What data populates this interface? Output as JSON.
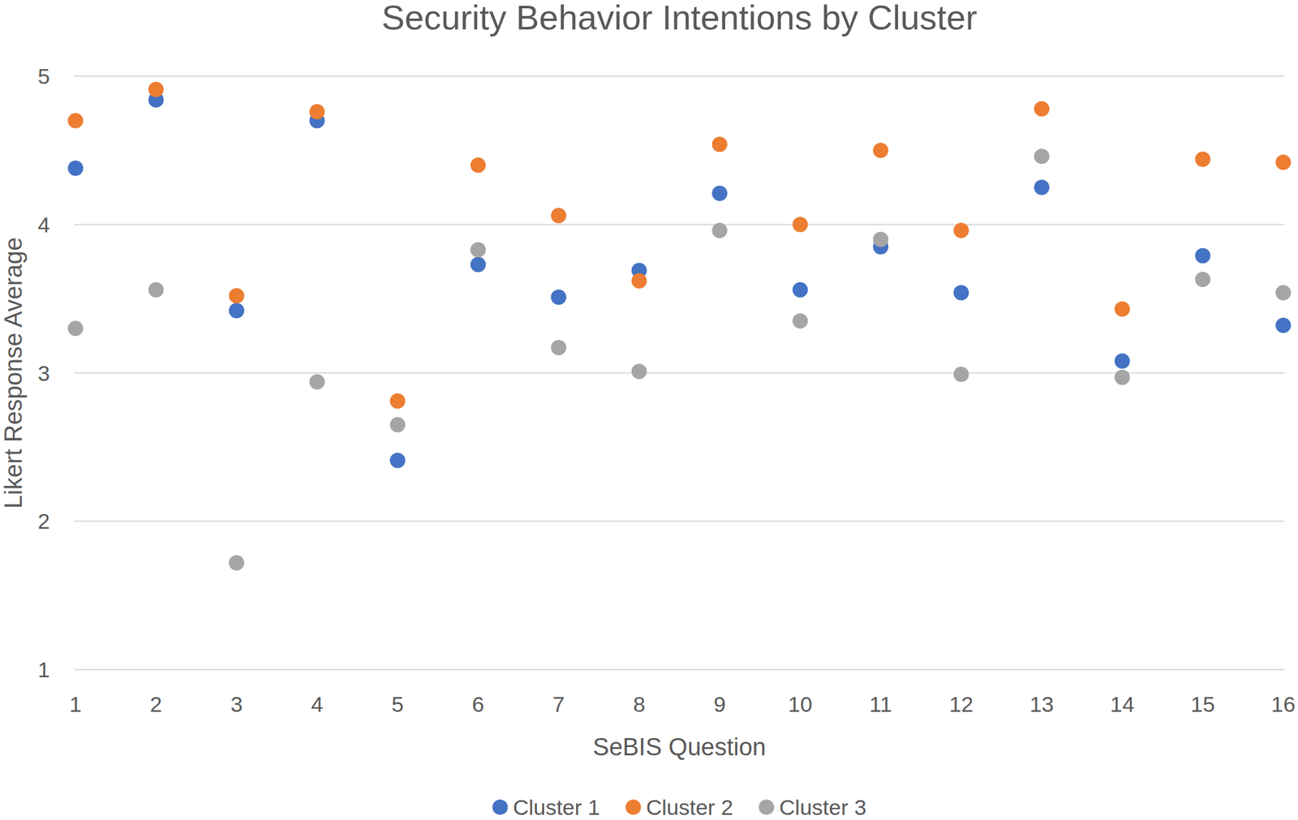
{
  "chart_data": {
    "type": "scatter",
    "title": "Security Behavior Intentions by Cluster",
    "x_label": "SeBIS Question",
    "y_label": "Likert Response Average",
    "x": [
      1,
      2,
      3,
      4,
      5,
      6,
      7,
      8,
      9,
      10,
      11,
      12,
      13,
      14,
      15,
      16
    ],
    "xlim": [
      1,
      16
    ],
    "xticks": [
      1,
      2,
      3,
      4,
      5,
      6,
      7,
      8,
      9,
      10,
      11,
      12,
      13,
      14,
      15,
      16
    ],
    "ylim": [
      1,
      5
    ],
    "yticks": [
      1,
      2,
      3,
      4,
      5
    ],
    "grid": true,
    "legend": "bottom",
    "series": [
      {
        "name": "Cluster 1",
        "color": "#4472c4",
        "marker": "circle",
        "values": [
          4.38,
          4.84,
          3.42,
          4.7,
          2.41,
          3.73,
          3.51,
          3.69,
          4.21,
          3.56,
          3.85,
          3.54,
          4.25,
          3.08,
          3.79,
          3.32
        ]
      },
      {
        "name": "Cluster 2",
        "color": "#ed7d31",
        "marker": "circle",
        "values": [
          4.7,
          4.91,
          3.52,
          4.76,
          2.81,
          4.4,
          4.06,
          3.62,
          4.54,
          4.0,
          4.5,
          3.96,
          4.78,
          3.43,
          4.44,
          4.42
        ]
      },
      {
        "name": "Cluster 3",
        "color": "#a5a5a5",
        "marker": "circle",
        "values": [
          3.3,
          3.56,
          1.72,
          2.94,
          2.65,
          3.83,
          3.17,
          3.01,
          3.96,
          3.35,
          3.9,
          2.99,
          4.46,
          2.97,
          3.63,
          3.54
        ]
      }
    ]
  }
}
